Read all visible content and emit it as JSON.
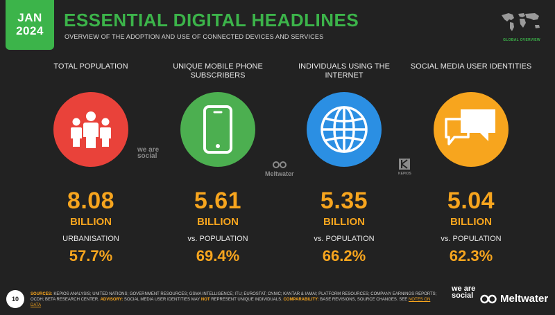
{
  "header": {
    "date_month": "JAN",
    "date_year": "2024",
    "title": "ESSENTIAL DIGITAL HEADLINES",
    "subtitle": "OVERVIEW OF THE ADOPTION AND USE OF CONNECTED DEVICES AND SERVICES",
    "corner_tag": "GLOBAL OVERVIEW"
  },
  "colors": {
    "green": "#3CB44A",
    "red": "#E9423A",
    "phone_green": "#4CAF50",
    "blue": "#2B8FE3",
    "orange": "#F7A51E"
  },
  "stats": [
    {
      "category": "TOTAL POPULATION",
      "icon": "people-icon",
      "value": "8.08",
      "unit": "BILLION",
      "sublabel": "URBANISATION",
      "percent": "57.7%"
    },
    {
      "category": "UNIQUE MOBILE PHONE SUBSCRIBERS",
      "icon": "mobile-phone-icon",
      "value": "5.61",
      "unit": "BILLION",
      "sublabel": "vs. POPULATION",
      "percent": "69.4%"
    },
    {
      "category": "INDIVIDUALS USING THE INTERNET",
      "icon": "globe-icon",
      "value": "5.35",
      "unit": "BILLION",
      "sublabel": "vs. POPULATION",
      "percent": "66.2%"
    },
    {
      "category": "SOCIAL MEDIA USER IDENTITIES",
      "icon": "speech-bubbles-icon",
      "value": "5.04",
      "unit": "BILLION",
      "sublabel": "vs. POPULATION",
      "percent": "62.3%"
    }
  ],
  "watermarks": {
    "wearesocial": "we are social",
    "meltwater": "Meltwater",
    "kepios": "KEPIOS"
  },
  "footer": {
    "page_number": "10",
    "sources_label": "SOURCES:",
    "sources_text": "KEPIOS ANALYSIS; UNITED NATIONS; GOVERNMENT RESOURCES; GSMA INTELLIGENCE; ITU; EUROSTAT; CNNIC; KANTAR & IAMAI; PLATFORM RESOURCES; COMPANY EARNINGS REPORTS; OCDH; BETA RESEARCH CENTER.",
    "advisory_label": "ADVISORY:",
    "advisory_text_1": "SOCIAL MEDIA USER IDENTITIES MAY",
    "advisory_not": "NOT",
    "advisory_text_2": "REPRESENT UNIQUE INDIVIDUALS.",
    "comparability_label": "COMPARABILITY:",
    "comparability_text": "BASE REVISIONS, SOURCE CHANGES. SEE",
    "notes_link": "NOTES ON DATA",
    "brand_1": "we are social",
    "brand_2": "Meltwater"
  }
}
